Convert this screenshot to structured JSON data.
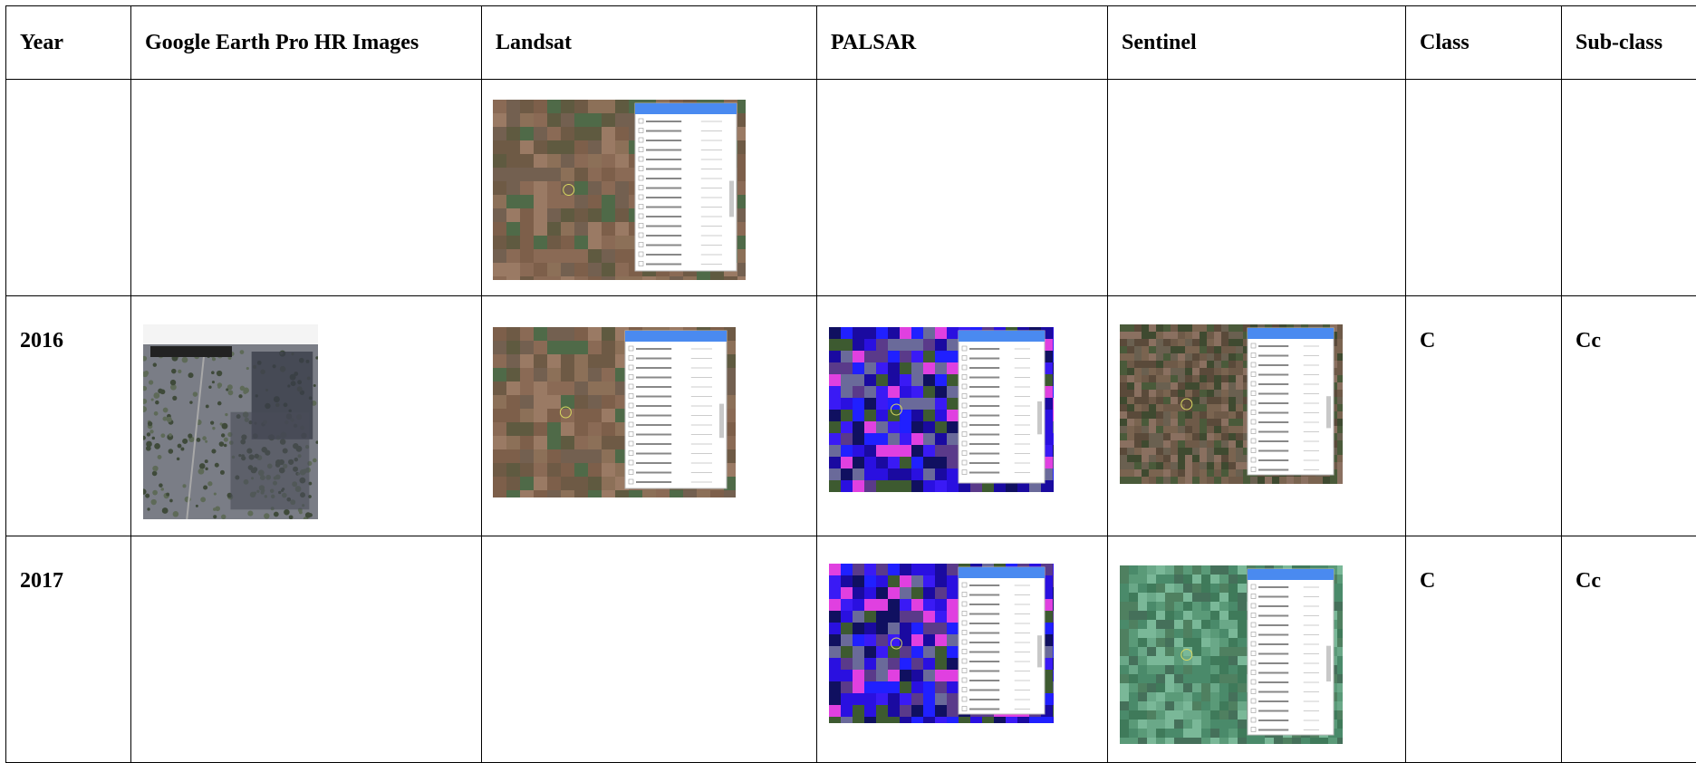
{
  "table": {
    "header": [
      "Year",
      "Google Earth Pro HR Images",
      "Landsat",
      "PALSAR",
      "Sentinel",
      "Class",
      "Sub-class"
    ],
    "rows": [
      {},
      {
        "year": "2016",
        "class": "C",
        "subclass": "Cc"
      },
      {
        "year": "2017",
        "class": "C",
        "subclass": "Cc"
      }
    ]
  }
}
